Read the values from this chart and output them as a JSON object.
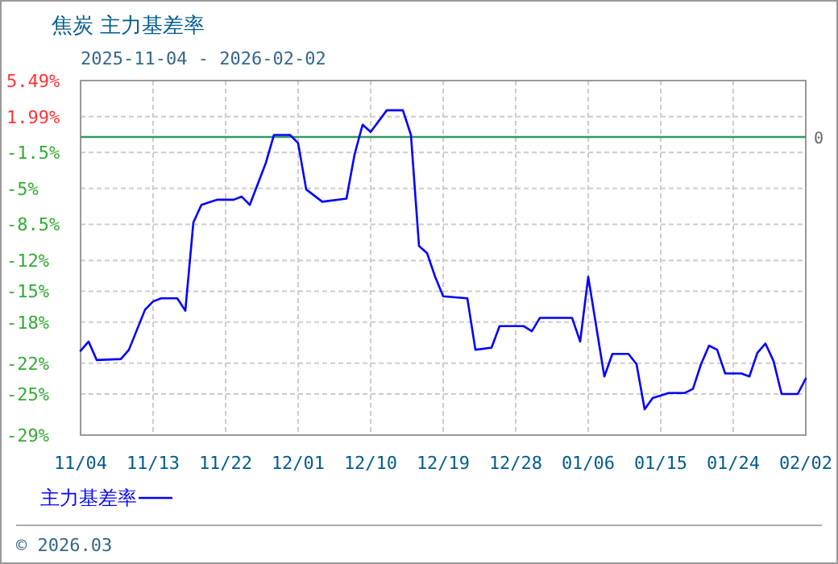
{
  "chart_data": {
    "type": "line",
    "title": "焦炭  主力基差率",
    "subtitle": "2025-11-04 - 2026-02-02",
    "x": [
      "2025-11-04",
      "2025-11-05",
      "2025-11-06",
      "2025-11-09",
      "2025-11-10",
      "2025-11-12",
      "2025-11-13",
      "2025-11-14",
      "2025-11-16",
      "2025-11-17",
      "2025-11-18",
      "2025-11-19",
      "2025-11-21",
      "2025-11-23",
      "2025-11-24",
      "2025-11-25",
      "2025-11-27",
      "2025-11-28",
      "2025-11-30",
      "2025-12-01",
      "2025-12-02",
      "2025-12-04",
      "2025-12-07",
      "2025-12-08",
      "2025-12-09",
      "2025-12-10",
      "2025-12-12",
      "2025-12-14",
      "2025-12-15",
      "2025-12-16",
      "2025-12-17",
      "2025-12-18",
      "2025-12-19",
      "2025-12-22",
      "2025-12-23",
      "2025-12-25",
      "2025-12-26",
      "2025-12-29",
      "2025-12-30",
      "2025-12-31",
      "2026-01-04",
      "2026-01-05",
      "2026-01-06",
      "2026-01-08",
      "2026-01-09",
      "2026-01-11",
      "2026-01-12",
      "2026-01-13",
      "2026-01-14",
      "2026-01-16",
      "2026-01-18",
      "2026-01-19",
      "2026-01-20",
      "2026-01-21",
      "2026-01-22",
      "2026-01-23",
      "2026-01-25",
      "2026-01-26",
      "2026-01-27",
      "2026-01-28",
      "2026-01-29",
      "2026-01-30",
      "2026-02-01",
      "2026-02-02"
    ],
    "series": [
      {
        "name": "主力基差率",
        "color": "#0000ff",
        "values": [
          -20.8,
          -19.9,
          -21.7,
          -21.6,
          -20.7,
          -16.8,
          -16.0,
          -15.7,
          -15.7,
          -16.9,
          -8.3,
          -6.6,
          -6.1,
          -6.1,
          -5.8,
          -6.6,
          -2.5,
          0.2,
          0.2,
          -0.6,
          -5.1,
          -6.3,
          -6.0,
          -1.7,
          1.2,
          0.5,
          2.6,
          2.6,
          0.2,
          -10.6,
          -11.3,
          -13.6,
          -15.5,
          -15.7,
          -20.7,
          -20.5,
          -18.4,
          -18.4,
          -18.9,
          -17.6,
          -17.6,
          -19.9,
          -13.6,
          -23.3,
          -21.1,
          -21.1,
          -22.1,
          -26.5,
          -25.4,
          -24.9,
          -24.9,
          -24.5,
          -22.1,
          -20.3,
          -20.7,
          -23.0,
          -23.0,
          -23.3,
          -21.0,
          -20.1,
          -21.8,
          -25.0,
          -25.0,
          -23.5
        ]
      }
    ],
    "xlim": [
      "2025-11-04",
      "2026-02-02"
    ],
    "xticks": [
      {
        "value": "2025-11-04",
        "label": "11/04"
      },
      {
        "value": "2025-11-13",
        "label": "11/13"
      },
      {
        "value": "2025-11-22",
        "label": "11/22"
      },
      {
        "value": "2025-12-01",
        "label": "12/01"
      },
      {
        "value": "2025-12-10",
        "label": "12/10"
      },
      {
        "value": "2025-12-19",
        "label": "12/19"
      },
      {
        "value": "2025-12-28",
        "label": "12/28"
      },
      {
        "value": "2026-01-06",
        "label": "01/06"
      },
      {
        "value": "2026-01-15",
        "label": "01/15"
      },
      {
        "value": "2026-01-24",
        "label": "01/24"
      },
      {
        "value": "2026-02-02",
        "label": "02/02"
      }
    ],
    "ylim": [
      -29,
      5.49
    ],
    "yticks": [
      {
        "value": 5.49,
        "label": "5.49%"
      },
      {
        "value": 1.99,
        "label": "1.99%"
      },
      {
        "value": -1.5,
        "label": "-1.5%"
      },
      {
        "value": -5,
        "label": "-5%"
      },
      {
        "value": -8.5,
        "label": "-8.5%"
      },
      {
        "value": -12,
        "label": "-12%"
      },
      {
        "value": -15,
        "label": "-15%"
      },
      {
        "value": -18,
        "label": "-18%"
      },
      {
        "value": -22,
        "label": "-22%"
      },
      {
        "value": -25,
        "label": "-25%"
      },
      {
        "value": -29,
        "label": "-29%"
      }
    ],
    "ref_lines": [
      {
        "axis": "y",
        "value": 0,
        "label": "0",
        "color": "#339966"
      }
    ],
    "grid": true,
    "legend": "bottom",
    "annotations": [
      "© 2026.03"
    ]
  }
}
